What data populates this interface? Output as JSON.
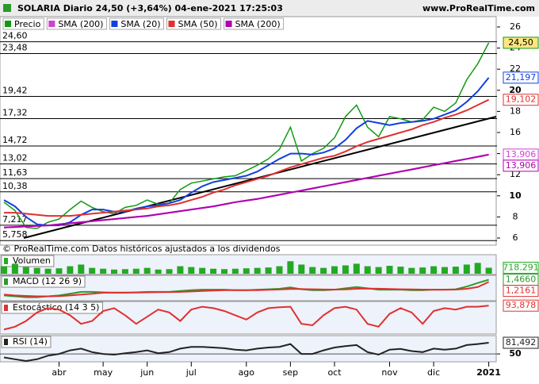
{
  "header": {
    "title": "SOLARIA Diario 24,50 (+3,64%) 04-ene-2021 17:25:03",
    "source": "www.ProRealTime.com",
    "note": "© ProRealTime.com  Datos históricos ajustados a los dividendos"
  },
  "chart_data": [
    {
      "type": "line",
      "categories": [
        null,
        null,
        null,
        null,
        null,
        "abr",
        null,
        null,
        null,
        "may",
        null,
        null,
        null,
        "jun",
        null,
        null,
        null,
        "jul",
        null,
        null,
        null,
        null,
        "ago",
        null,
        null,
        null,
        "sep",
        null,
        null,
        null,
        "oct",
        null,
        null,
        null,
        null,
        "nov",
        null,
        null,
        null,
        "dic",
        null,
        null,
        null,
        null,
        "2021"
      ],
      "ylim": [
        5.4,
        26.6
      ],
      "yticks": [
        6,
        8,
        10,
        12,
        14,
        16,
        18,
        20,
        22,
        24,
        26
      ],
      "levels": [
        {
          "value": 24.6,
          "label": "24,60"
        },
        {
          "value": 23.48,
          "label": "23,48"
        },
        {
          "value": 19.42,
          "label": "19,42"
        },
        {
          "value": 17.32,
          "label": "17,32"
        },
        {
          "value": 14.72,
          "label": "14,72"
        },
        {
          "value": 13.02,
          "label": "13,02"
        },
        {
          "value": 11.63,
          "label": "11,63"
        },
        {
          "value": 10.38,
          "label": "10,38"
        },
        {
          "value": 7.217,
          "label": "7,217"
        },
        {
          "value": 5.758,
          "label": "5,758"
        }
      ],
      "series": [
        {
          "name": "Precio",
          "color": "#119911",
          "value_label": "24,50",
          "values": [
            9.4,
            8.6,
            7.0,
            6.9,
            7.5,
            7.8,
            8.7,
            9.5,
            8.9,
            8.5,
            8.3,
            8.9,
            9.1,
            9.6,
            9.2,
            9.3,
            10.6,
            11.2,
            11.4,
            11.6,
            11.8,
            11.9,
            12.4,
            12.9,
            13.5,
            14.4,
            16.5,
            13.3,
            14.0,
            14.5,
            15.5,
            17.5,
            18.6,
            16.5,
            15.6,
            17.5,
            17.3,
            17.0,
            17.2,
            18.4,
            18.0,
            18.8,
            21.0,
            22.5,
            24.5
          ]
        },
        {
          "name": "SMA (200)",
          "color": "#d040d0",
          "value_label": "13,906",
          "values": [
            7.0,
            7.05,
            7.1,
            7.15,
            7.2,
            7.3,
            7.4,
            7.5,
            7.6,
            7.7,
            7.8,
            7.9,
            8.0,
            8.1,
            8.25,
            8.4,
            8.55,
            8.7,
            8.85,
            9.0,
            9.2,
            9.4,
            9.55,
            9.7,
            9.9,
            10.1,
            10.3,
            10.5,
            10.7,
            10.9,
            11.1,
            11.3,
            11.5,
            11.7,
            11.9,
            12.1,
            12.3,
            12.5,
            12.7,
            12.9,
            13.1,
            13.3,
            13.5,
            13.7,
            13.906
          ]
        },
        {
          "name": "SMA (20)",
          "color": "#1040e0",
          "value_label": "21,197",
          "values": [
            9.6,
            9.0,
            8.0,
            7.3,
            7.2,
            7.2,
            7.5,
            8.2,
            8.7,
            8.7,
            8.5,
            8.5,
            8.8,
            9.0,
            9.1,
            9.3,
            9.6,
            10.3,
            10.9,
            11.3,
            11.5,
            11.7,
            11.9,
            12.3,
            12.9,
            13.5,
            14.0,
            14.0,
            13.9,
            14.1,
            14.5,
            15.3,
            16.4,
            17.1,
            16.9,
            16.7,
            16.9,
            17.0,
            17.1,
            17.3,
            17.7,
            18.1,
            18.9,
            19.9,
            21.197
          ]
        },
        {
          "name": "SMA (50)",
          "color": "#e03030",
          "value_label": "19,102",
          "values": [
            8.4,
            8.4,
            8.3,
            8.2,
            8.1,
            8.1,
            8.1,
            8.2,
            8.3,
            8.4,
            8.5,
            8.6,
            8.7,
            8.8,
            9.0,
            9.1,
            9.3,
            9.6,
            9.9,
            10.3,
            10.6,
            11.0,
            11.3,
            11.6,
            11.9,
            12.3,
            12.7,
            13.0,
            13.3,
            13.6,
            13.8,
            14.2,
            14.7,
            15.1,
            15.4,
            15.7,
            16.0,
            16.3,
            16.7,
            17.0,
            17.4,
            17.7,
            18.1,
            18.6,
            19.102
          ]
        },
        {
          "name": "SMA (200)",
          "color": "#b000b0",
          "value_label": "13,906",
          "values": [
            7.0,
            7.05,
            7.1,
            7.15,
            7.2,
            7.3,
            7.4,
            7.5,
            7.6,
            7.7,
            7.8,
            7.9,
            8.0,
            8.1,
            8.25,
            8.4,
            8.55,
            8.7,
            8.85,
            9.0,
            9.2,
            9.4,
            9.55,
            9.7,
            9.9,
            10.1,
            10.3,
            10.5,
            10.7,
            10.9,
            11.1,
            11.3,
            11.5,
            11.7,
            11.9,
            12.1,
            12.3,
            12.5,
            12.7,
            12.9,
            13.1,
            13.3,
            13.5,
            13.7,
            13.906
          ]
        }
      ]
    },
    {
      "type": "bar",
      "title": "Volumen",
      "ylim": [
        0,
        2000000
      ],
      "series": [
        {
          "color": "#22aa22",
          "value_label": "718.291",
          "values": [
            900000,
            1200000,
            800000,
            700000,
            600000,
            650000,
            900000,
            1100000,
            700000,
            600000,
            500000,
            550000,
            600000,
            700000,
            500000,
            550000,
            900000,
            800000,
            700000,
            600000,
            550000,
            600000,
            650000,
            700000,
            750000,
            900000,
            1500000,
            1100000,
            800000,
            700000,
            900000,
            1000000,
            1200000,
            900000,
            800000,
            950000,
            850000,
            700000,
            750000,
            900000,
            800000,
            850000,
            1100000,
            1300000,
            718291
          ]
        }
      ]
    },
    {
      "type": "line",
      "title": "MACD (12 26 9)",
      "ylim": [
        -0.8,
        1.7
      ],
      "series": [
        {
          "color": "#2a9a2a",
          "value_label": "1,4660",
          "values": [
            -0.3,
            -0.4,
            -0.5,
            -0.5,
            -0.4,
            -0.3,
            -0.1,
            0.1,
            0.1,
            0.05,
            0.0,
            0.0,
            0.05,
            0.1,
            0.1,
            0.1,
            0.2,
            0.3,
            0.35,
            0.35,
            0.35,
            0.3,
            0.3,
            0.35,
            0.4,
            0.45,
            0.6,
            0.4,
            0.3,
            0.3,
            0.35,
            0.5,
            0.65,
            0.5,
            0.35,
            0.35,
            0.35,
            0.3,
            0.3,
            0.35,
            0.35,
            0.4,
            0.7,
            1.1,
            1.466
          ]
        },
        {
          "color": "#e03030",
          "value_label": "1,2161",
          "values": [
            -0.2,
            -0.3,
            -0.35,
            -0.4,
            -0.4,
            -0.38,
            -0.3,
            -0.2,
            -0.1,
            0.0,
            0.02,
            0.02,
            0.03,
            0.05,
            0.07,
            0.08,
            0.1,
            0.15,
            0.2,
            0.25,
            0.3,
            0.3,
            0.3,
            0.3,
            0.33,
            0.37,
            0.42,
            0.42,
            0.4,
            0.37,
            0.36,
            0.39,
            0.45,
            0.48,
            0.46,
            0.43,
            0.4,
            0.38,
            0.36,
            0.35,
            0.35,
            0.36,
            0.45,
            0.65,
            1.2161
          ]
        }
      ]
    },
    {
      "type": "line",
      "title": "Estocástico (14 3 5)",
      "ylim": [
        0,
        100
      ],
      "series": [
        {
          "color": "#e03030",
          "value_label": "93,878",
          "values": [
            10,
            20,
            40,
            70,
            85,
            80,
            60,
            30,
            40,
            75,
            85,
            60,
            30,
            55,
            80,
            70,
            40,
            80,
            90,
            85,
            75,
            60,
            45,
            70,
            85,
            88,
            90,
            30,
            25,
            60,
            85,
            90,
            80,
            30,
            20,
            65,
            85,
            70,
            30,
            75,
            85,
            80,
            90,
            90,
            93.878
          ]
        }
      ]
    },
    {
      "type": "line",
      "title": "RSI (14)",
      "ylim": [
        30,
        95
      ],
      "yticks": [
        50
      ],
      "series": [
        {
          "color": "#222222",
          "value_label": "81,492",
          "values": [
            40,
            35,
            30,
            35,
            45,
            50,
            60,
            65,
            55,
            50,
            48,
            52,
            55,
            60,
            52,
            55,
            65,
            70,
            70,
            68,
            66,
            62,
            60,
            65,
            68,
            70,
            78,
            50,
            50,
            60,
            68,
            72,
            75,
            55,
            48,
            62,
            64,
            58,
            55,
            65,
            62,
            65,
            75,
            78,
            81.492
          ]
        }
      ]
    }
  ]
}
